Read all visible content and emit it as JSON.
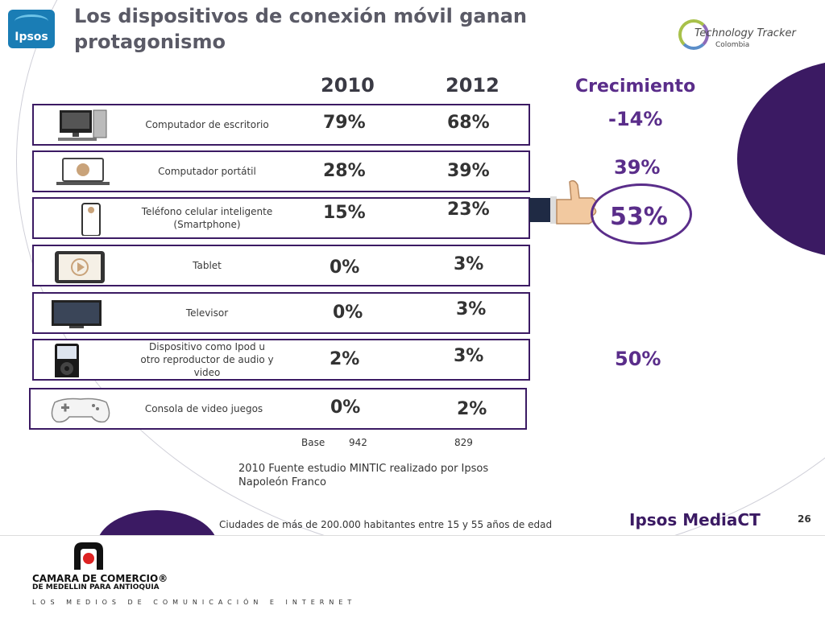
{
  "header": {
    "ipsos_logo": "Ipsos",
    "title": "Los dispositivos de conexión móvil ganan protagonismo",
    "tracker_logo": {
      "name": "Technology Tracker",
      "sub": "Colombia"
    }
  },
  "table": {
    "columns": {
      "year1": "2010",
      "year2": "2012",
      "growth": "Crecimiento"
    },
    "rows": [
      {
        "label": "Computador de escritorio",
        "icon": "desktop-computer-icon",
        "v2010": "79%",
        "v2012": "68%",
        "growth": "-14%"
      },
      {
        "label": "Computador portátil",
        "icon": "laptop-icon",
        "v2010": "28%",
        "v2012": "39%",
        "growth": "39%"
      },
      {
        "label": "Teléfono celular inteligente (Smartphone)",
        "icon": "smartphone-icon",
        "v2010": "15%",
        "v2012": "23%",
        "growth": "53%"
      },
      {
        "label": "Tablet",
        "icon": "tablet-icon",
        "v2010": "0%",
        "v2012": "3%",
        "growth": ""
      },
      {
        "label": "Televisor",
        "icon": "television-icon",
        "v2010": "0%",
        "v2012": "3%",
        "growth": ""
      },
      {
        "label": "Dispositivo como Ipod u otro reproductor de audio y video",
        "icon": "ipod-icon",
        "v2010": "2%",
        "v2012": "3%",
        "growth": "50%"
      },
      {
        "label": "Consola de video juegos",
        "icon": "gamepad-icon",
        "v2010": "0%",
        "v2012": "2%",
        "growth": ""
      }
    ],
    "base": {
      "label": "Base",
      "v2010": "942",
      "v2012": "829"
    }
  },
  "source": "2010 Fuente estudio MINTIC realizado por Ipsos Napoleón Franco",
  "footer": {
    "note": "Ciudades de más de 200.000 habitantes entre 15 y 55 años de edad",
    "brand": "Ipsos MediaCT",
    "page": "26"
  },
  "bottom": {
    "org": "CAMARA DE COMERCIO®",
    "org_sub": "DE MEDELLIN PARA ANTIOQUIA",
    "tagline": "LOS MEDIOS DE COMUNICACIÓN E INTERNET"
  },
  "colors": {
    "accent": "#3b1a63",
    "growth": "#5a2d8a"
  }
}
